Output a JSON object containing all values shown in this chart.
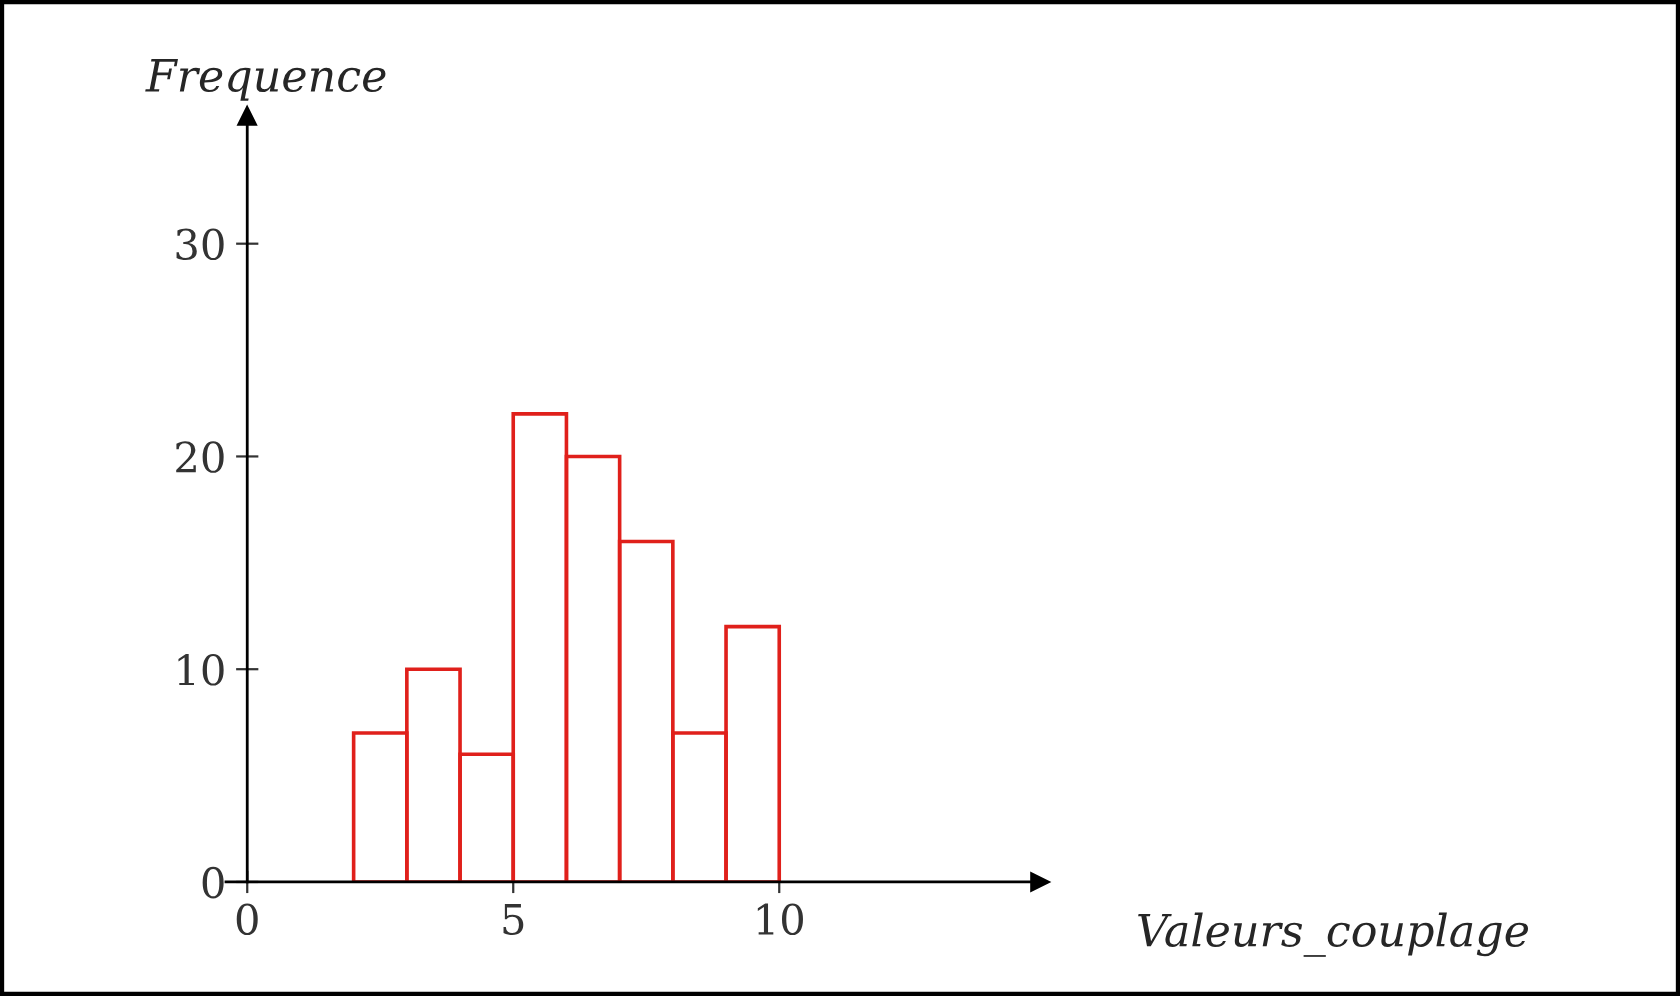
{
  "chart_data": {
    "type": "histogram",
    "xlabel": "Valeurs_couplage",
    "ylabel": "Frequence",
    "bins": [
      2,
      3,
      4,
      5,
      6,
      7,
      8,
      9,
      10
    ],
    "values": [
      7,
      10,
      6,
      22,
      20,
      16,
      7,
      12
    ],
    "color": "#e0201b",
    "xlim": [
      -0.4,
      14.9
    ],
    "ylim": [
      0,
      36
    ],
    "xticks": [
      0,
      5,
      10
    ],
    "yticks": [
      0,
      10,
      20,
      30
    ],
    "grid": false,
    "legend": false
  }
}
